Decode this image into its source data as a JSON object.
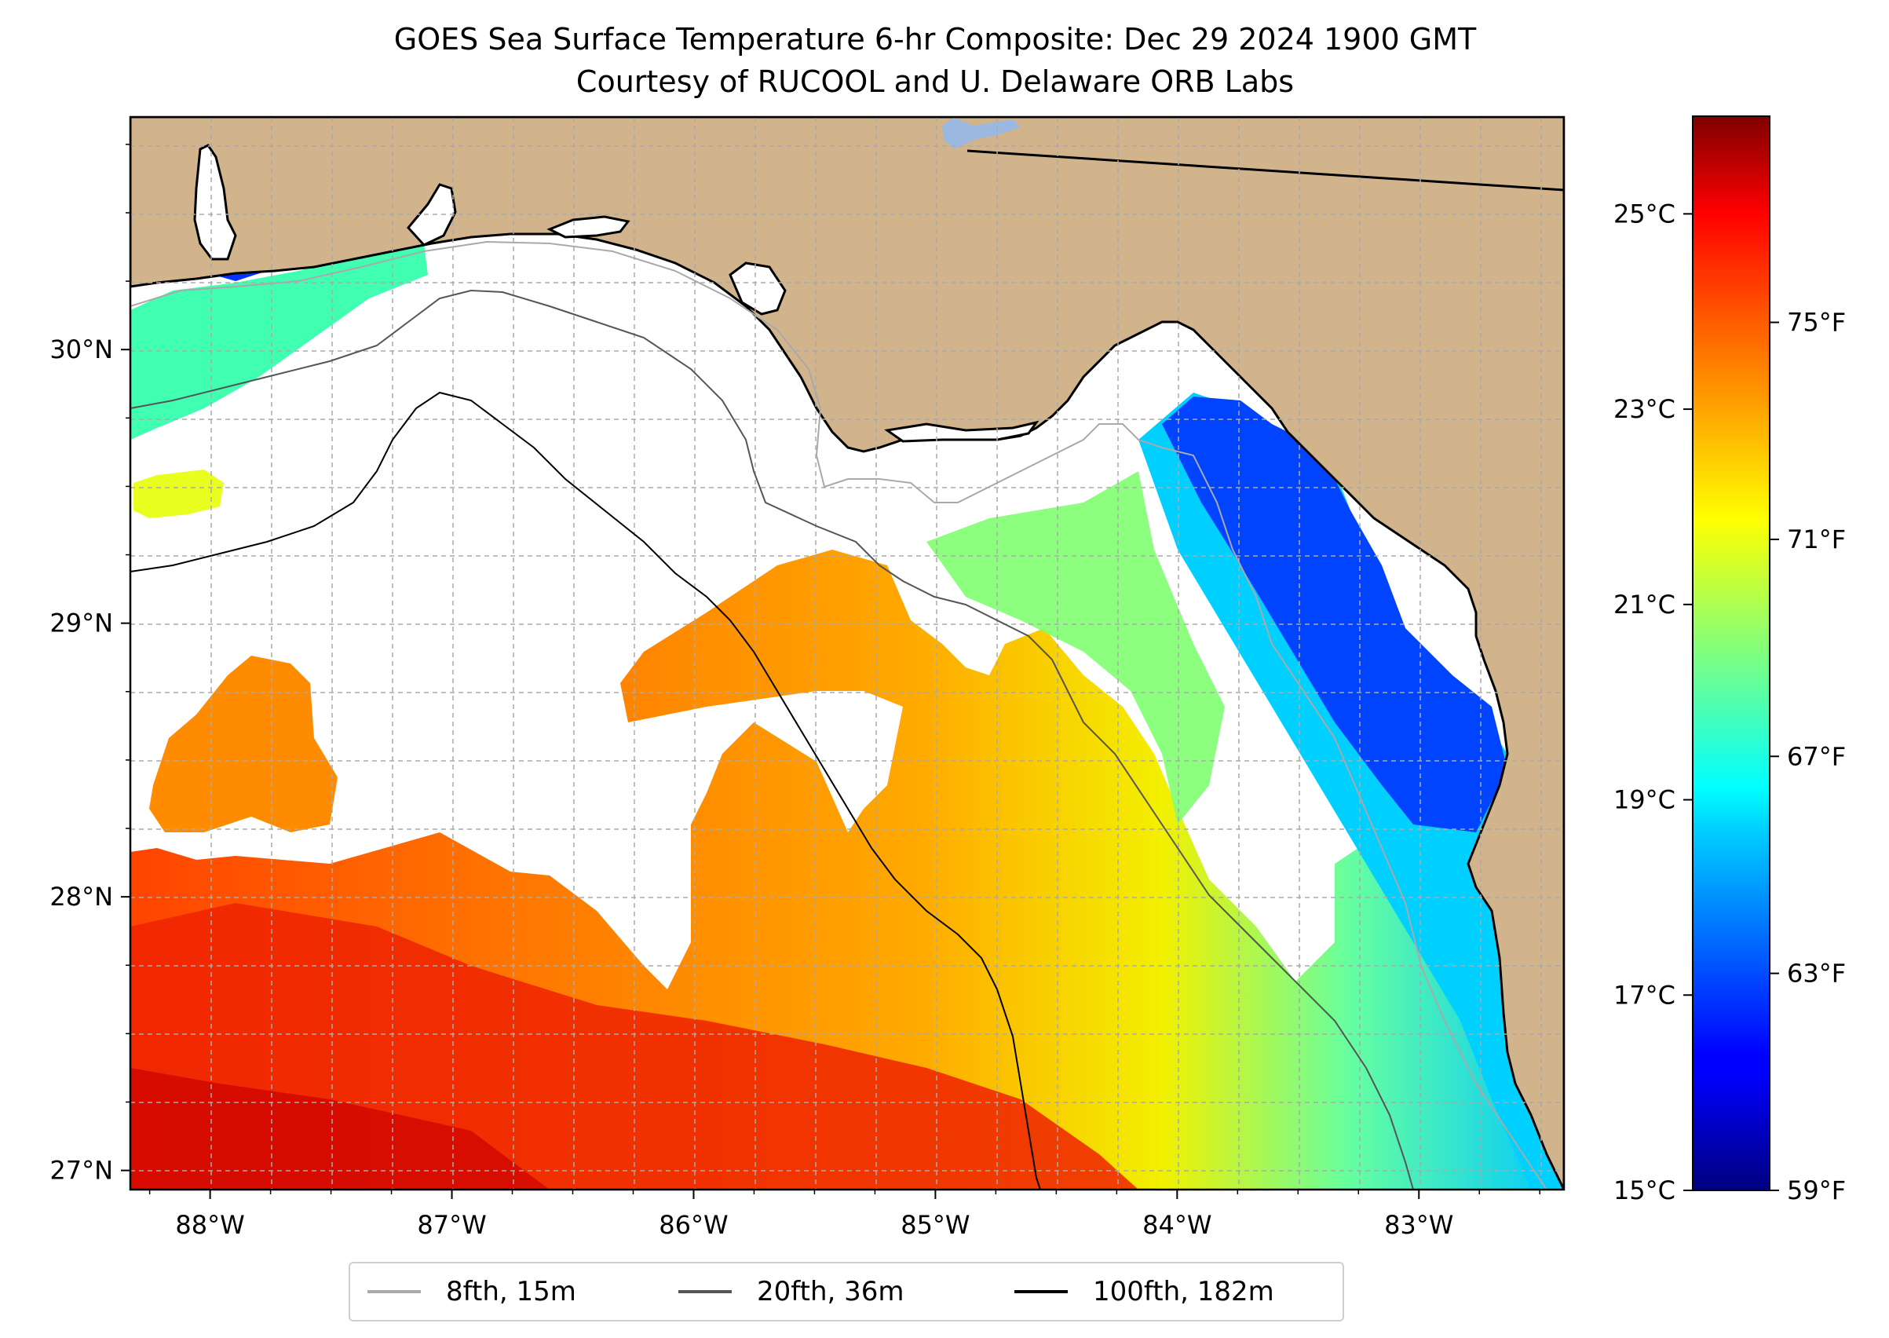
{
  "title": {
    "line1": "GOES Sea Surface Temperature 6-hr Composite: Dec 29 2024 1900 GMT",
    "line2": "Courtesy of RUCOOL and U. Delaware ORB Labs"
  },
  "map": {
    "extent": {
      "lon_min": -88.33,
      "lon_max": -82.4,
      "lat_min": 26.93,
      "lat_max": 30.85
    },
    "gridlines": "dashed",
    "colors": {
      "land": "#d2b48c",
      "lake": "#9bb8e0",
      "no_data": "#ffffff",
      "coastline": "#000000"
    },
    "lon_labels": [
      {
        "value": -88,
        "label": "88°W"
      },
      {
        "value": -87,
        "label": "87°W"
      },
      {
        "value": -86,
        "label": "86°W"
      },
      {
        "value": -85,
        "label": "85°W"
      },
      {
        "value": -84,
        "label": "84°W"
      },
      {
        "value": -83,
        "label": "83°W"
      }
    ],
    "lat_labels": [
      {
        "value": 30,
        "label": "30°N"
      },
      {
        "value": 29,
        "label": "29°N"
      },
      {
        "value": 28,
        "label": "28°N"
      },
      {
        "value": 27,
        "label": "27°N"
      }
    ]
  },
  "colorbar": {
    "colormap": "jet",
    "range_c": [
      15,
      26
    ],
    "celsius_ticks": [
      {
        "value": 25,
        "label": "25°C"
      },
      {
        "value": 23,
        "label": "23°C"
      },
      {
        "value": 21,
        "label": "21°C"
      },
      {
        "value": 19,
        "label": "19°C"
      },
      {
        "value": 17,
        "label": "17°C"
      },
      {
        "value": 15,
        "label": "15°C"
      }
    ],
    "fahrenheit_ticks": [
      {
        "value": 75,
        "label": "75°F"
      },
      {
        "value": 71,
        "label": "71°F"
      },
      {
        "value": 67,
        "label": "67°F"
      },
      {
        "value": 63,
        "label": "63°F"
      },
      {
        "value": 59,
        "label": "59°F"
      }
    ]
  },
  "legend": {
    "placement": "bottom-center",
    "entries": [
      {
        "label": "8fth, 15m",
        "color": "#a9a9a9"
      },
      {
        "label": "20fth, 36m",
        "color": "#555555"
      },
      {
        "label": "100fth, 182m",
        "color": "#000000"
      }
    ]
  }
}
